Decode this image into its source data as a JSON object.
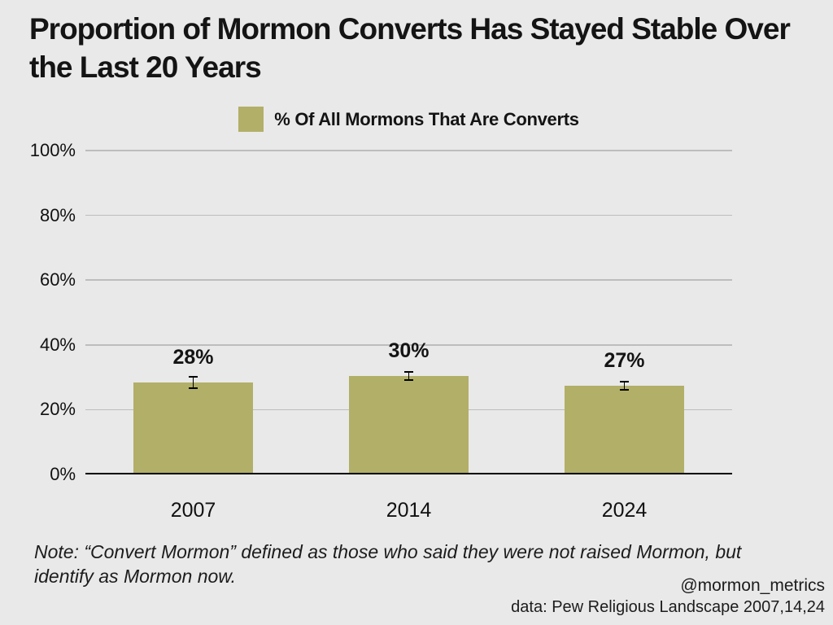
{
  "chart_data": {
    "type": "bar",
    "title": "Proportion of Mormon Converts Has Stayed Stable Over the Last 20 Years",
    "legend": {
      "label": "% Of All Mormons That Are Converts",
      "position": "top-center"
    },
    "categories": [
      "2007",
      "2014",
      "2024"
    ],
    "series": [
      {
        "name": "% Of All Mormons That Are Converts",
        "values": [
          28,
          30,
          27
        ],
        "value_labels": [
          "28%",
          "30%",
          "27%"
        ],
        "error_margins": [
          2,
          1.5,
          1.5
        ]
      }
    ],
    "xlabel": "",
    "ylabel": "",
    "ylim": [
      0,
      100
    ],
    "y_ticks": [
      {
        "label": "0%",
        "value": 0
      },
      {
        "label": "20%",
        "value": 20
      },
      {
        "label": "40%",
        "value": 40
      },
      {
        "label": "60%",
        "value": 60
      },
      {
        "label": "80%",
        "value": 80
      },
      {
        "label": "100%",
        "value": 100
      }
    ],
    "grid": true,
    "colors": {
      "bar": "#b2af68",
      "background": "#e9e9e9",
      "gridline": "#bdbdbd",
      "axis": "#000000",
      "text": "#141414"
    },
    "note": "Note: “Convert Mormon” defined as those who said they were not raised Mormon, but identify as Mormon now.",
    "attribution_handle": "@mormon_metrics",
    "attribution_source": "data: Pew Religious Landscape 2007,14,24"
  }
}
